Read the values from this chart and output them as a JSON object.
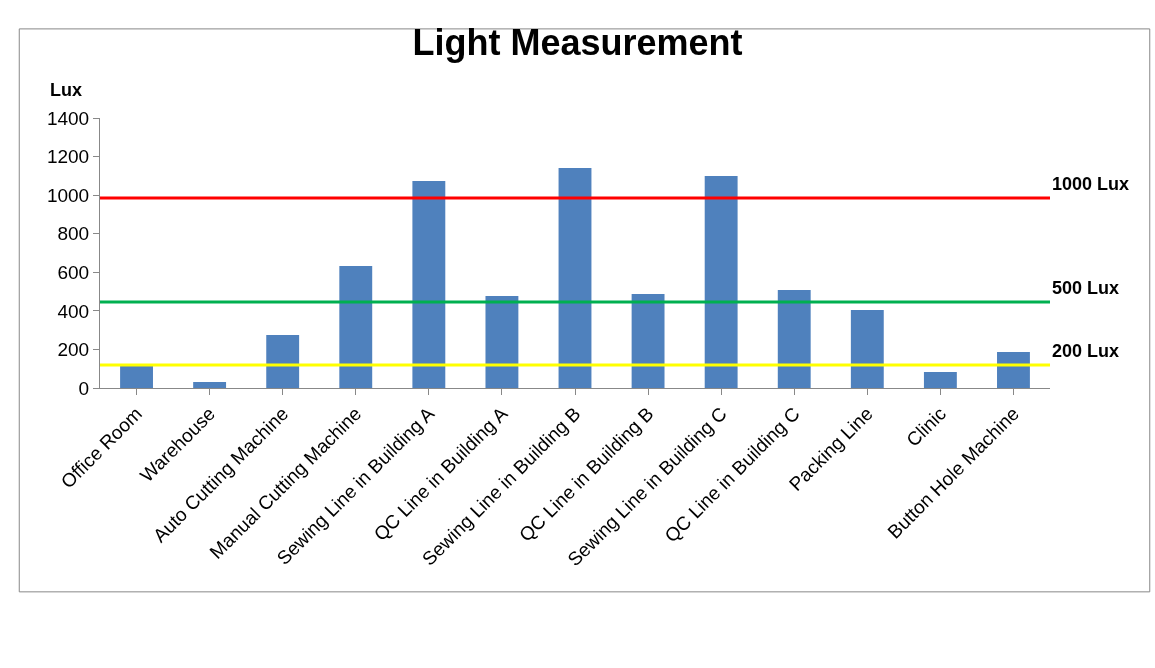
{
  "chart_data": {
    "type": "bar",
    "title": "Light Measurement",
    "ylabel": "Lux",
    "categories": [
      "Office Room",
      "Warehouse",
      "Auto Cutting Machine",
      "Manual Cutting Machine",
      "Sewing Line in Building A",
      "QC Line in Building A",
      "Sewing Line in Building B",
      "QC Line in Building B",
      "Sewing Line in Building C",
      "QC Line in Building C",
      "Packing Line",
      "Clinic",
      "Button Hole Machine"
    ],
    "values": [
      114,
      31,
      275,
      633,
      1073,
      477,
      1141,
      487,
      1099,
      508,
      404,
      83,
      187
    ],
    "color": "#4f81bd",
    "ylim": [
      0,
      1400
    ],
    "yticks": [
      0,
      200,
      400,
      600,
      800,
      1000,
      1200,
      1400
    ],
    "ref_lines": [
      {
        "axis": "y",
        "value": 985,
        "label": "1000 Lux",
        "color": "#ff0000"
      },
      {
        "axis": "y",
        "value": 446,
        "label": "500 Lux",
        "color": "#00b050"
      },
      {
        "axis": "y",
        "value": 119,
        "label": "200 Lux",
        "color": "#ffff00"
      }
    ]
  }
}
